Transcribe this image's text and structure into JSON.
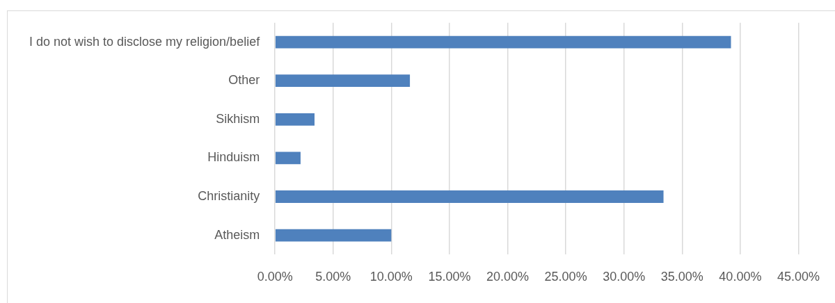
{
  "chart_data": {
    "type": "bar",
    "orientation": "horizontal",
    "categories": [
      "I do not wish to disclose my religion/belief",
      "Other",
      "Sikhism",
      "Hinduism",
      "Christianity",
      "Atheism"
    ],
    "values": [
      39.2,
      11.6,
      3.4,
      2.2,
      33.4,
      10.0
    ],
    "color": "#4f81bd",
    "xlim": [
      0,
      45
    ],
    "xticks": [
      {
        "value": 0,
        "label": "0.00%"
      },
      {
        "value": 5,
        "label": "5.00%"
      },
      {
        "value": 10,
        "label": "10.00%"
      },
      {
        "value": 15,
        "label": "15.00%"
      },
      {
        "value": 20,
        "label": "20.00%"
      },
      {
        "value": 25,
        "label": "25.00%"
      },
      {
        "value": 30,
        "label": "30.00%"
      },
      {
        "value": 35,
        "label": "35.00%"
      },
      {
        "value": 40,
        "label": "40.00%"
      },
      {
        "value": 45,
        "label": "45.00%"
      }
    ],
    "grid": "x",
    "legend": false
  }
}
